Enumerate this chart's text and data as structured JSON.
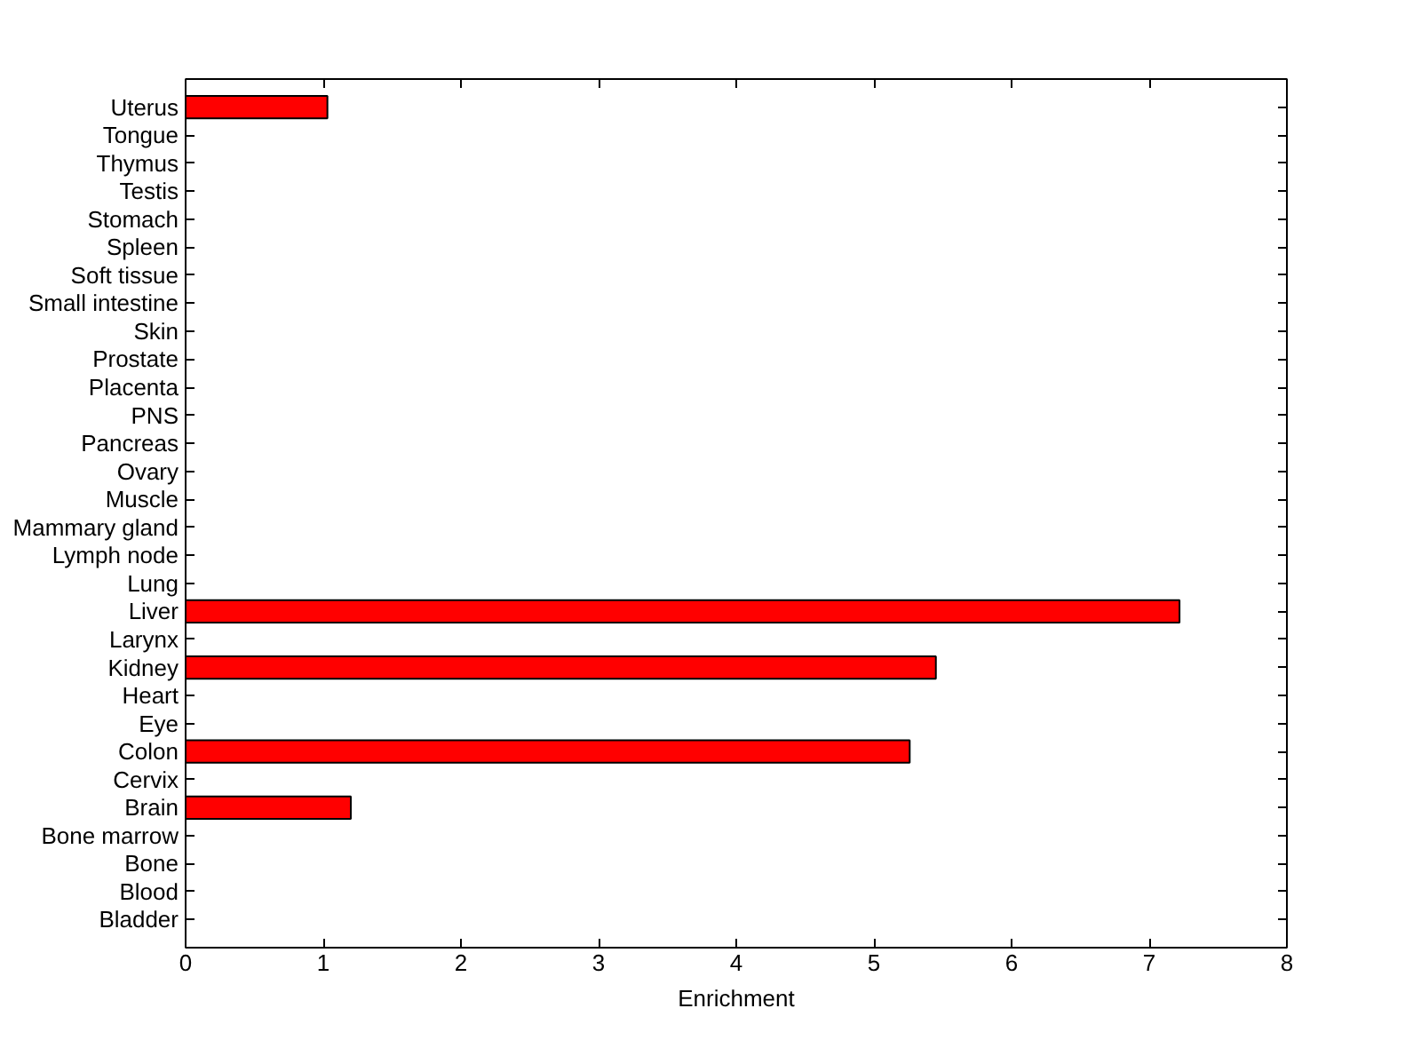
{
  "chart_data": {
    "type": "bar",
    "orientation": "horizontal",
    "xlabel": "Enrichment",
    "categories": [
      "Uterus",
      "Tongue",
      "Thymus",
      "Testis",
      "Stomach",
      "Spleen",
      "Soft tissue",
      "Small intestine",
      "Skin",
      "Prostate",
      "Placenta",
      "PNS",
      "Pancreas",
      "Ovary",
      "Muscle",
      "Mammary gland",
      "Lymph node",
      "Lung",
      "Liver",
      "Larynx",
      "Kidney",
      "Heart",
      "Eye",
      "Colon",
      "Cervix",
      "Brain",
      "Bone marrow",
      "Bone",
      "Blood",
      "Bladder"
    ],
    "values": [
      1.03,
      null,
      null,
      null,
      null,
      null,
      null,
      null,
      null,
      null,
      null,
      null,
      null,
      null,
      null,
      null,
      null,
      null,
      7.22,
      null,
      5.45,
      null,
      null,
      5.26,
      null,
      1.2,
      null,
      null,
      null,
      null
    ],
    "color": "#ff0000",
    "xlim": [
      0,
      8
    ],
    "xticks": [
      0,
      1,
      2,
      3,
      4,
      5,
      6,
      7,
      8
    ],
    "grid": false
  }
}
